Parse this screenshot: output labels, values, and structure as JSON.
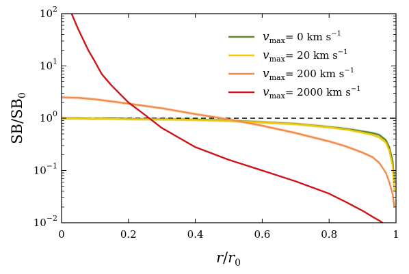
{
  "chart_data": {
    "type": "line",
    "xlabel": {
      "base": "r",
      "slash": "/",
      "denom": "r",
      "denom_sub": "0"
    },
    "ylabel": {
      "a": "SB",
      "slash": "/",
      "b": "SB",
      "b_sub": "0"
    },
    "xlim": [
      0,
      1
    ],
    "ylim": [
      0.01,
      100
    ],
    "yscale": "log",
    "x_ticks": [
      {
        "value": 0,
        "label": "0"
      },
      {
        "value": 0.2,
        "label": "0.2"
      },
      {
        "value": 0.4,
        "label": "0.4"
      },
      {
        "value": 0.6,
        "label": "0.6"
      },
      {
        "value": 0.8,
        "label": "0.8"
      },
      {
        "value": 1,
        "label": "1"
      }
    ],
    "y_ticks": [
      {
        "value": 0.01,
        "base": "10",
        "exp": "−2"
      },
      {
        "value": 0.1,
        "base": "10",
        "exp": "−1"
      },
      {
        "value": 1,
        "base": "10",
        "exp": "0"
      },
      {
        "value": 10,
        "base": "10",
        "exp": "1"
      },
      {
        "value": 100,
        "base": "10",
        "exp": "2"
      }
    ],
    "reference_line": {
      "y": 1,
      "style": "dashed",
      "color": "#000000"
    },
    "legend_position": "top-right",
    "series": [
      {
        "name": "0",
        "legend": {
          "v": "v",
          "sub": "max",
          "eq": "= ",
          "value": "0",
          "unit": " km s",
          "exp": "−1"
        },
        "color": "#5b8a2a",
        "band": true,
        "x": [
          0.0,
          0.05,
          0.1,
          0.15,
          0.2,
          0.3,
          0.4,
          0.5,
          0.6,
          0.7,
          0.8,
          0.85,
          0.9,
          0.93,
          0.95,
          0.97,
          0.98,
          0.99,
          0.995
        ],
        "y": [
          1.0,
          1.0,
          0.98,
          1.0,
          0.97,
          0.96,
          0.94,
          0.9,
          0.84,
          0.78,
          0.68,
          0.63,
          0.56,
          0.52,
          0.48,
          0.38,
          0.28,
          0.15,
          0.06
        ]
      },
      {
        "name": "20",
        "legend": {
          "v": "v",
          "sub": "max",
          "eq": "= ",
          "value": "20",
          "unit": " km s",
          "exp": "−1"
        },
        "color": "#f2c70c",
        "band": true,
        "x": [
          0.0,
          0.05,
          0.1,
          0.15,
          0.2,
          0.3,
          0.4,
          0.5,
          0.6,
          0.7,
          0.8,
          0.85,
          0.9,
          0.93,
          0.95,
          0.97,
          0.98,
          0.99,
          0.995
        ],
        "y": [
          1.0,
          0.99,
          0.98,
          0.97,
          0.96,
          0.95,
          0.93,
          0.89,
          0.83,
          0.77,
          0.67,
          0.61,
          0.53,
          0.48,
          0.43,
          0.34,
          0.24,
          0.12,
          0.04
        ]
      },
      {
        "name": "200",
        "legend": {
          "v": "v",
          "sub": "max",
          "eq": "= ",
          "value": "200",
          "unit": " km s",
          "exp": "−1"
        },
        "color": "#f28c4a",
        "band": true,
        "x": [
          0.0,
          0.05,
          0.1,
          0.15,
          0.2,
          0.3,
          0.4,
          0.5,
          0.6,
          0.7,
          0.8,
          0.85,
          0.9,
          0.93,
          0.95,
          0.97,
          0.98,
          0.99,
          0.995
        ],
        "y": [
          2.5,
          2.45,
          2.3,
          2.1,
          1.9,
          1.55,
          1.2,
          0.95,
          0.72,
          0.52,
          0.36,
          0.29,
          0.22,
          0.18,
          0.14,
          0.09,
          0.06,
          0.035,
          0.02
        ]
      },
      {
        "name": "2000",
        "legend": {
          "v": "v",
          "sub": "max",
          "eq": "= ",
          "value": "2000",
          "unit": " km s",
          "exp": "−1"
        },
        "color": "#cc1419",
        "band": false,
        "x": [
          0.03,
          0.05,
          0.08,
          0.1,
          0.12,
          0.15,
          0.2,
          0.25,
          0.3,
          0.4,
          0.5,
          0.6,
          0.7,
          0.8,
          0.85,
          0.9,
          0.93,
          0.95,
          0.97
        ],
        "y": [
          100,
          50,
          20,
          12,
          7,
          4.2,
          2.0,
          1.15,
          0.65,
          0.28,
          0.16,
          0.1,
          0.062,
          0.036,
          0.025,
          0.017,
          0.013,
          0.011,
          0.009
        ]
      }
    ]
  }
}
